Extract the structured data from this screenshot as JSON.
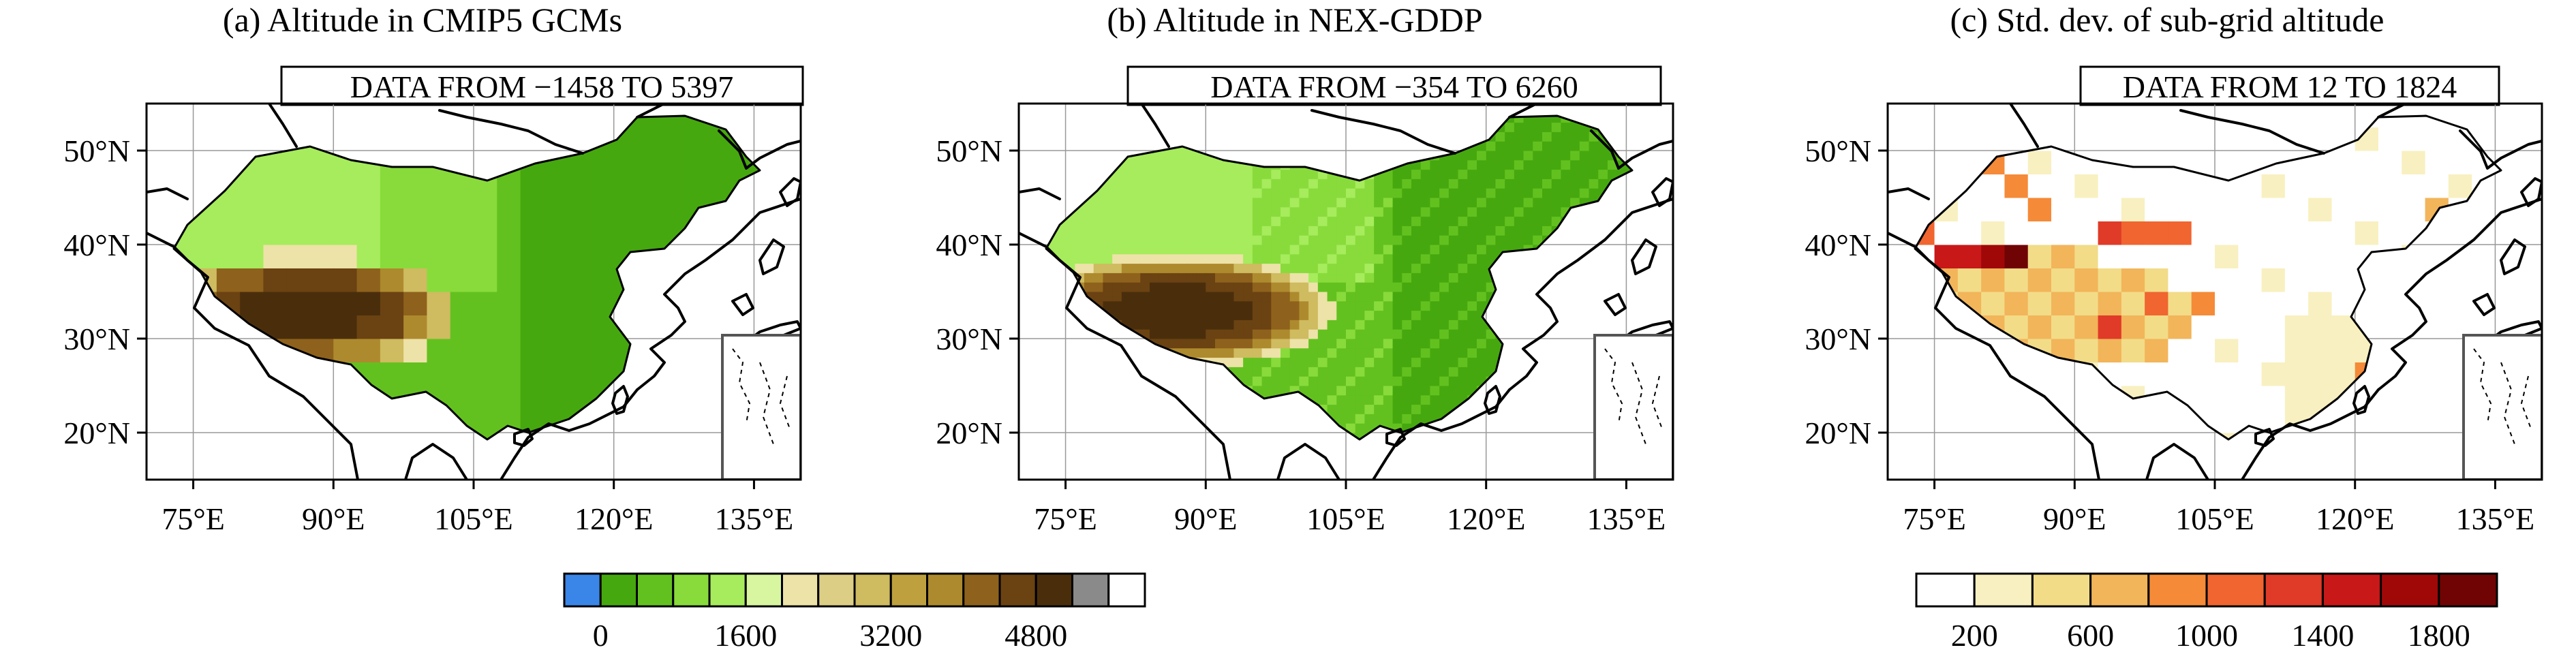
{
  "panels": [
    {
      "title": "(a) Altitude in CMIP5 GCMs",
      "range_label": "DATA FROM −1458 TO 5397",
      "lat_labels": [
        "50°N",
        "40°N",
        "30°N",
        "20°N"
      ],
      "lon_labels": [
        "75°E",
        "90°E",
        "105°E",
        "120°E",
        "135°E"
      ]
    },
    {
      "title": "(b) Altitude in NEX-GDDP",
      "range_label": "DATA FROM −354 TO 6260",
      "lat_labels": [
        "50°N",
        "40°N",
        "30°N",
        "20°N"
      ],
      "lon_labels": [
        "75°E",
        "90°E",
        "105°E",
        "120°E",
        "135°E"
      ]
    },
    {
      "title": "(c) Std. dev. of sub-grid altitude",
      "range_label": "DATA FROM 12 TO 1824",
      "lat_labels": [
        "50°N",
        "40°N",
        "30°N",
        "20°N"
      ],
      "lon_labels": [
        "75°E",
        "90°E",
        "105°E",
        "120°E",
        "135°E"
      ]
    }
  ],
  "altitude_colorbar": {
    "colors": [
      "#3a86e8",
      "#46a80f",
      "#63c11f",
      "#88db3b",
      "#a6ec5c",
      "#d8f5a0",
      "#ede2a8",
      "#ddce86",
      "#cfbb60",
      "#bea03f",
      "#ae8a2e",
      "#8e621c",
      "#6b4212",
      "#4a2e0c",
      "#8a8a8a",
      "#ffffff"
    ],
    "labels": [
      "0",
      "1600",
      "3200",
      "4800"
    ]
  },
  "std_colorbar": {
    "colors": [
      "#ffffff",
      "#f8f0c0",
      "#f2dc88",
      "#f2b55a",
      "#f58a38",
      "#f06530",
      "#e03a28",
      "#c81818",
      "#a00808",
      "#700404"
    ],
    "labels": [
      "200",
      "600",
      "1000",
      "1400",
      "1800"
    ]
  }
}
